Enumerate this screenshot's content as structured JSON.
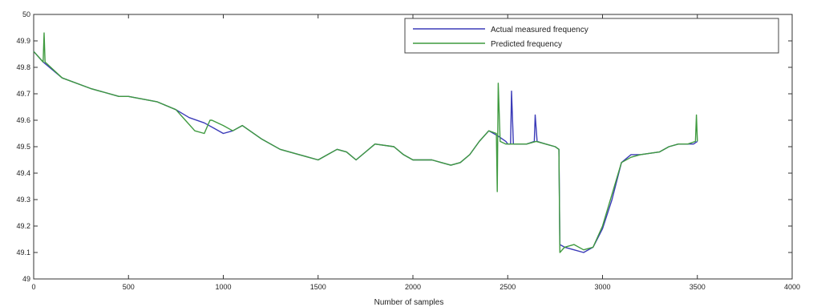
{
  "chart_data": {
    "type": "line",
    "xlabel": "Number of samples",
    "ylabel": "",
    "xlim": [
      0,
      4000
    ],
    "ylim": [
      49,
      50
    ],
    "xticks": [
      "0",
      "500",
      "1000",
      "1500",
      "2000",
      "2500",
      "3000",
      "3500",
      "4000"
    ],
    "yticks": [
      "49",
      "49.1",
      "49.2",
      "49.3",
      "49.4",
      "49.5",
      "49.6",
      "49.7",
      "49.8",
      "49.9",
      "50"
    ],
    "grid": false,
    "legend_position": "top-right",
    "series": [
      {
        "name": "Actual measured frequency",
        "color": "#3b3bb8",
        "x": [
          0,
          50,
          150,
          300,
          450,
          500,
          650,
          750,
          820,
          900,
          950,
          1000,
          1050,
          1100,
          1200,
          1300,
          1400,
          1500,
          1550,
          1600,
          1650,
          1700,
          1750,
          1800,
          1900,
          1950,
          2000,
          2100,
          2150,
          2200,
          2250,
          2300,
          2350,
          2400,
          2450,
          2490,
          2500,
          2515,
          2520,
          2530,
          2550,
          2600,
          2640,
          2645,
          2655,
          2700,
          2750,
          2770,
          2775,
          2800,
          2850,
          2900,
          2950,
          3000,
          3050,
          3100,
          3150,
          3200,
          3300,
          3350,
          3400,
          3450,
          3480,
          3500
        ],
        "y": [
          49.86,
          49.82,
          49.76,
          49.72,
          49.69,
          49.69,
          49.67,
          49.64,
          49.61,
          49.59,
          49.57,
          49.55,
          49.56,
          49.58,
          49.53,
          49.49,
          49.47,
          49.45,
          49.47,
          49.49,
          49.48,
          49.45,
          49.48,
          49.51,
          49.5,
          49.47,
          49.45,
          49.45,
          49.44,
          49.43,
          49.44,
          49.47,
          49.52,
          49.56,
          49.54,
          49.52,
          49.51,
          49.51,
          49.71,
          49.51,
          49.51,
          49.51,
          49.52,
          49.62,
          49.52,
          49.51,
          49.5,
          49.49,
          49.13,
          49.12,
          49.11,
          49.1,
          49.12,
          49.19,
          49.3,
          49.44,
          49.47,
          49.47,
          49.48,
          49.5,
          49.51,
          49.51,
          49.51,
          49.52
        ]
      },
      {
        "name": "Predicted frequency",
        "color": "#3f9a3f",
        "x": [
          0,
          50,
          55,
          60,
          150,
          300,
          450,
          500,
          650,
          750,
          800,
          850,
          900,
          930,
          940,
          1000,
          1050,
          1100,
          1200,
          1300,
          1400,
          1500,
          1550,
          1600,
          1650,
          1700,
          1750,
          1800,
          1900,
          1950,
          2000,
          2100,
          2150,
          2200,
          2250,
          2300,
          2350,
          2400,
          2440,
          2445,
          2450,
          2460,
          2490,
          2520,
          2550,
          2600,
          2650,
          2700,
          2750,
          2770,
          2775,
          2800,
          2850,
          2900,
          2950,
          3000,
          3050,
          3100,
          3150,
          3200,
          3300,
          3350,
          3400,
          3450,
          3490,
          3495,
          3500
        ],
        "y": [
          49.86,
          49.82,
          49.93,
          49.82,
          49.76,
          49.72,
          49.69,
          49.69,
          49.67,
          49.64,
          49.6,
          49.56,
          49.55,
          49.6,
          49.6,
          49.58,
          49.56,
          49.58,
          49.53,
          49.49,
          49.47,
          49.45,
          49.47,
          49.49,
          49.48,
          49.45,
          49.48,
          49.51,
          49.5,
          49.47,
          49.45,
          49.45,
          49.44,
          49.43,
          49.44,
          49.47,
          49.52,
          49.56,
          49.55,
          49.33,
          49.74,
          49.52,
          49.51,
          49.51,
          49.51,
          49.51,
          49.52,
          49.51,
          49.5,
          49.49,
          49.1,
          49.12,
          49.13,
          49.11,
          49.12,
          49.2,
          49.32,
          49.44,
          49.46,
          49.47,
          49.48,
          49.5,
          49.51,
          49.51,
          49.52,
          49.62,
          49.52
        ]
      }
    ]
  }
}
